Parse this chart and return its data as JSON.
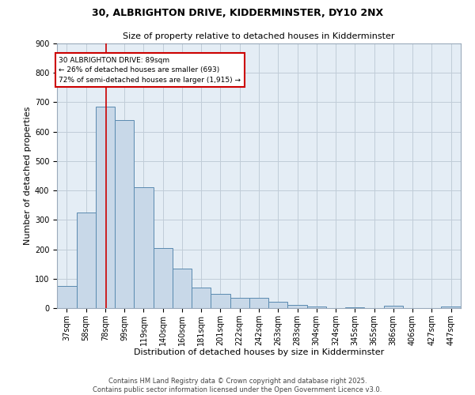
{
  "title1": "30, ALBRIGHTON DRIVE, KIDDERMINSTER, DY10 2NX",
  "title2": "Size of property relative to detached houses in Kidderminster",
  "xlabel": "Distribution of detached houses by size in Kidderminster",
  "ylabel": "Number of detached properties",
  "bar_color": "#c8d8e8",
  "bar_edge_color": "#5a8ab0",
  "grid_color": "#c0ccd8",
  "background_color": "#e4edf5",
  "annotation_line_color": "#cc0000",
  "annotation_box_color": "#cc0000",
  "annotation_text": "30 ALBRIGHTON DRIVE: 89sqm\n← 26% of detached houses are smaller (693)\n72% of semi-detached houses are larger (1,915) →",
  "property_size": 89,
  "footer": "Contains HM Land Registry data © Crown copyright and database right 2025.\nContains public sector information licensed under the Open Government Licence v3.0.",
  "categories": [
    "37sqm",
    "58sqm",
    "78sqm",
    "99sqm",
    "119sqm",
    "140sqm",
    "160sqm",
    "181sqm",
    "201sqm",
    "222sqm",
    "242sqm",
    "263sqm",
    "283sqm",
    "304sqm",
    "324sqm",
    "345sqm",
    "365sqm",
    "386sqm",
    "406sqm",
    "427sqm",
    "447sqm"
  ],
  "bin_edges": [
    37,
    58,
    78,
    99,
    119,
    140,
    160,
    181,
    201,
    222,
    242,
    263,
    283,
    304,
    324,
    345,
    365,
    386,
    406,
    427,
    447,
    468
  ],
  "values": [
    75,
    325,
    685,
    640,
    410,
    205,
    135,
    70,
    48,
    35,
    35,
    22,
    10,
    5,
    0,
    4,
    0,
    8,
    0,
    0,
    5
  ],
  "ylim": [
    0,
    900
  ],
  "yticks": [
    0,
    100,
    200,
    300,
    400,
    500,
    600,
    700,
    800,
    900
  ],
  "title1_fontsize": 9,
  "title2_fontsize": 8,
  "xlabel_fontsize": 8,
  "ylabel_fontsize": 8,
  "tick_fontsize": 7,
  "footer_fontsize": 6
}
